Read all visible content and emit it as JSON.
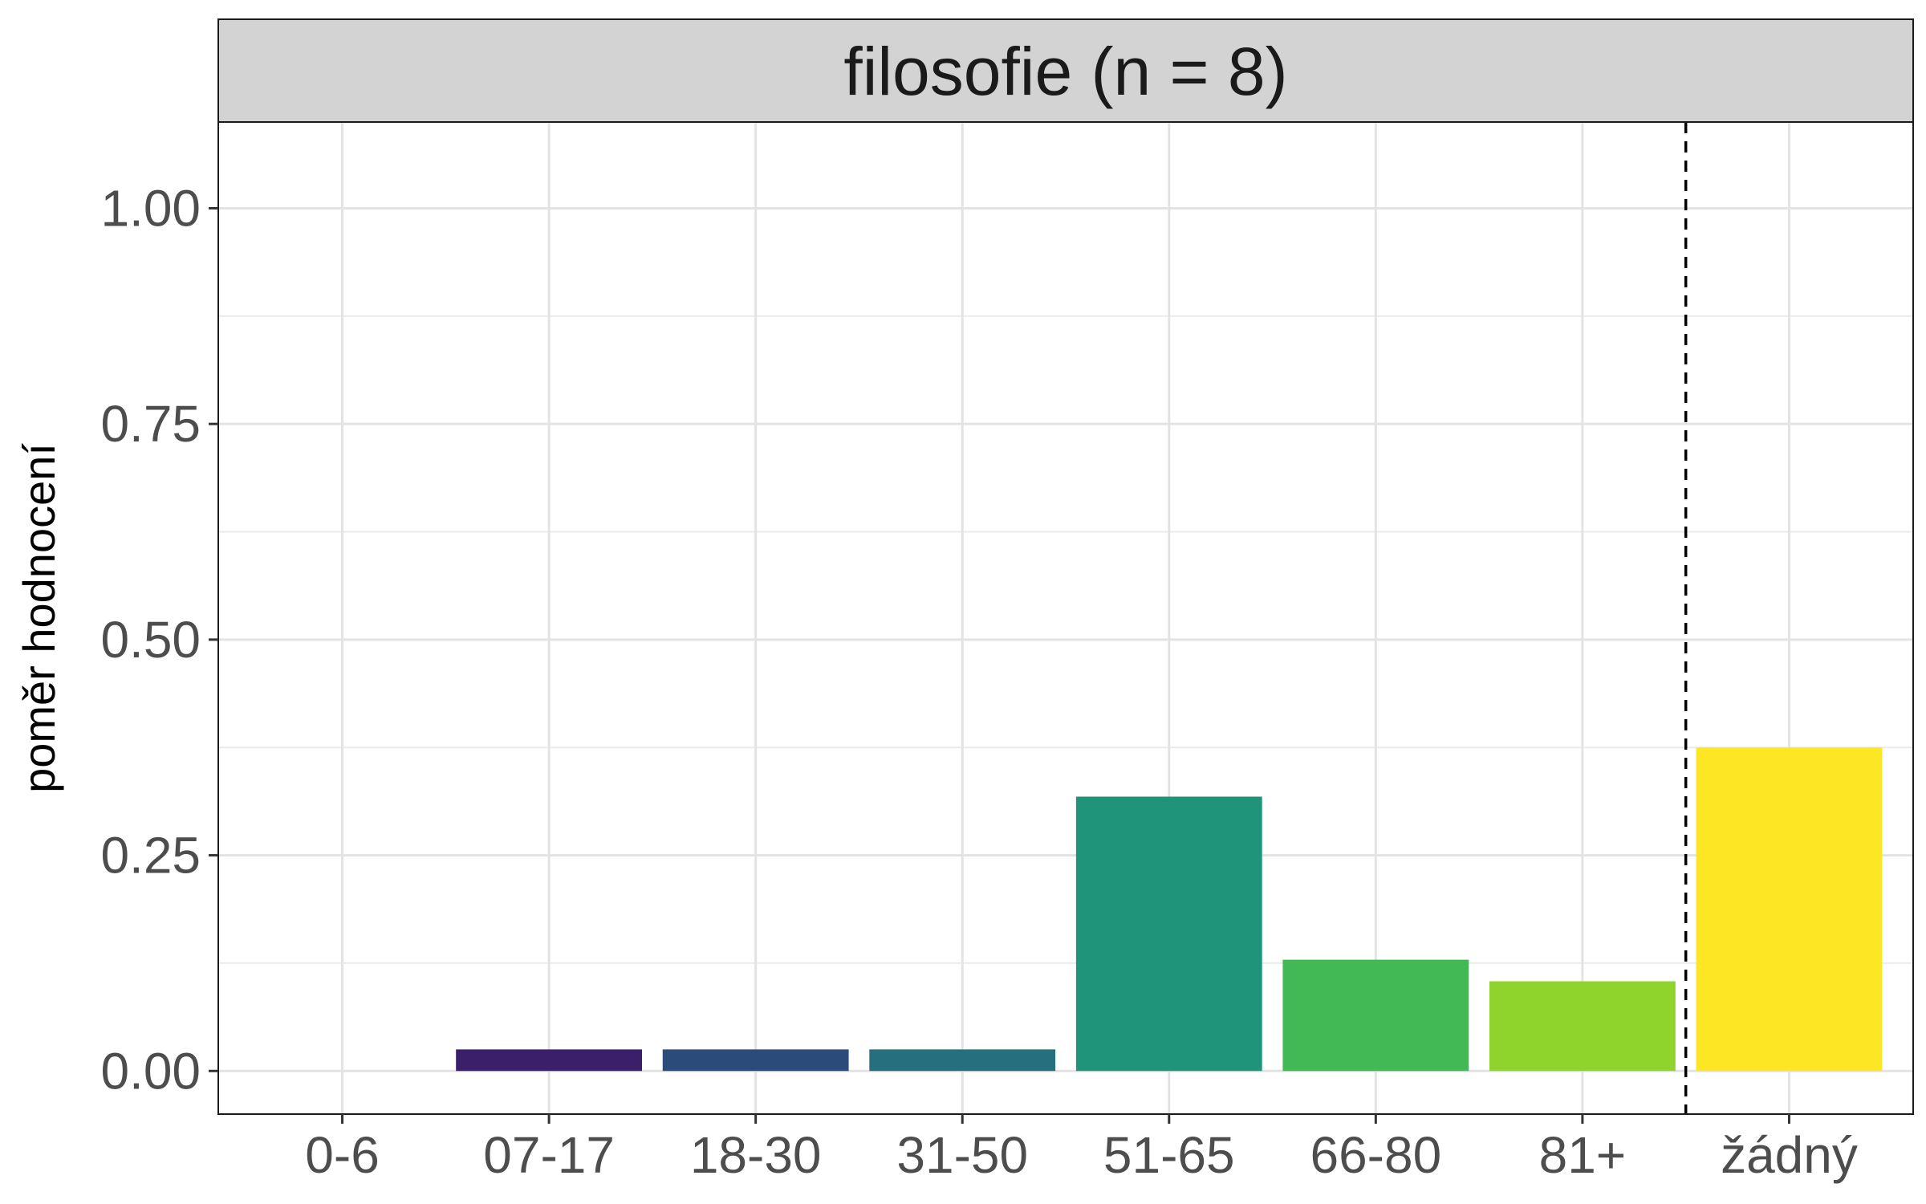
{
  "chart_data": {
    "type": "bar",
    "facet_title": "filosofie (n = 8)",
    "ylabel": "poměr hodnocení",
    "xlabel": "",
    "categories": [
      "0-6",
      "07-17",
      "18-30",
      "31-50",
      "51-65",
      "66-80",
      "81+",
      "žádný"
    ],
    "values": [
      0,
      0.025,
      0.025,
      0.025,
      0.318,
      0.129,
      0.104,
      0.375
    ],
    "colors": [
      "#440154",
      "#3b1f6a",
      "#2b4c7b",
      "#266f7e",
      "#20947a",
      "#42b955",
      "#8fd42d",
      "#fde725"
    ],
    "ylim": [
      -0.05,
      1.1
    ],
    "yticks": [
      0,
      0.25,
      0.5,
      0.75,
      1.0
    ],
    "ytick_labels": [
      "0.00",
      "0.25",
      "0.50",
      "0.75",
      "1.00"
    ],
    "grid": true,
    "reference_line": {
      "style": "dashed",
      "between": [
        "81+",
        "žádný"
      ]
    }
  }
}
